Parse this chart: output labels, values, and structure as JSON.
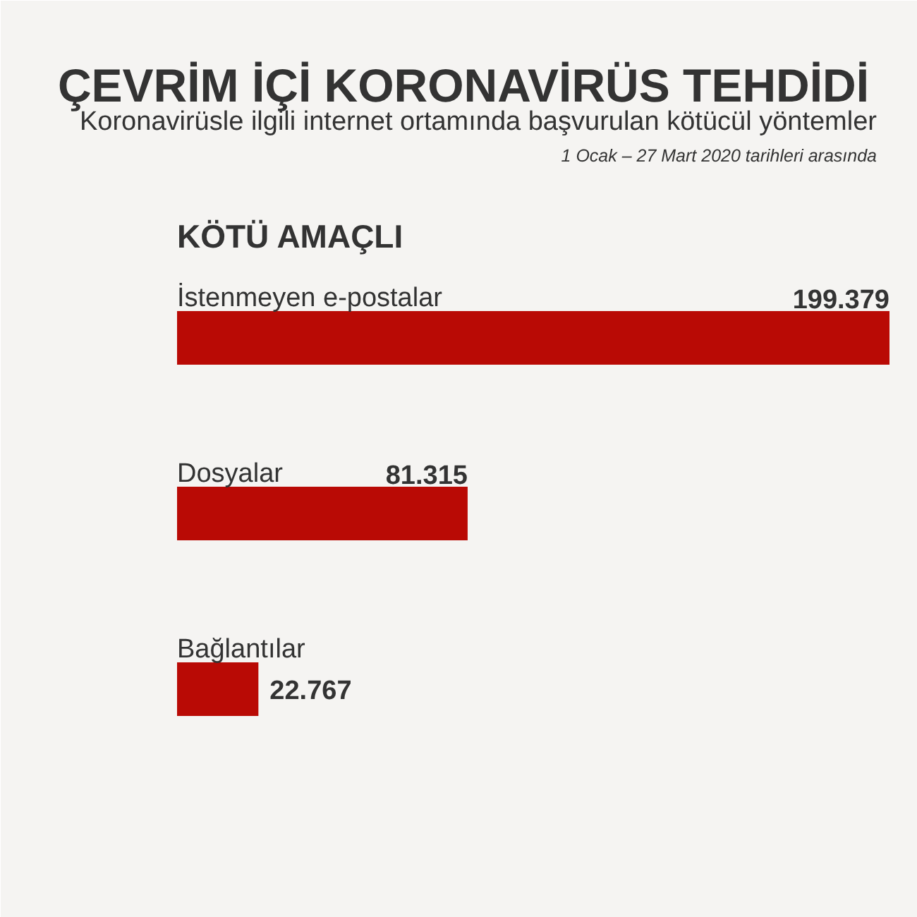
{
  "chart_data": {
    "type": "bar",
    "orientation": "horizontal",
    "title": "ÇEVRİM İÇİ KORONAVİRÜS TEHDİDİ",
    "subtitle": "Koronavirüsle ilgili internet ortamında başvurulan kötücül yöntemler",
    "annotations": [
      "1 Ocak – 27 Mart 2020 tarihleri arasında",
      "KÖTÜ AMAÇLI"
    ],
    "categories": [
      "İstenmeyen e-postalar",
      "Dosyalar",
      "Bağlantılar"
    ],
    "values": [
      199379,
      81315,
      22767
    ],
    "value_labels": [
      "199.379",
      "81.315",
      "22.767"
    ],
    "color": "#b90a05",
    "tick_labels": false
  }
}
